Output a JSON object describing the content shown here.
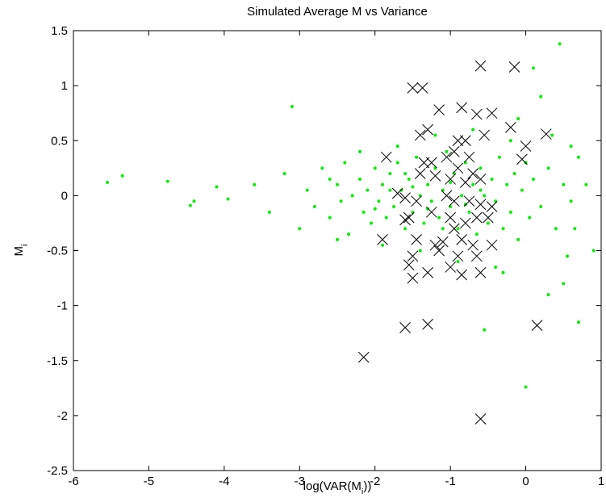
{
  "chart_data": {
    "type": "scatter",
    "title": "Simulated Average M vs Variance",
    "xlabel": [
      "log(VAR(M",
      "i",
      "))"
    ],
    "ylabel": [
      "M",
      "i"
    ],
    "xlim": [
      -6,
      1
    ],
    "ylim": [
      -2.5,
      1.5
    ],
    "xticks": [
      -6,
      -5,
      -4,
      -3,
      -2,
      -1,
      0,
      1
    ],
    "yticks": [
      -2.5,
      -2,
      -1.5,
      -1,
      -0.5,
      0,
      0.5,
      1,
      1.5
    ],
    "series": [
      {
        "color": "#00ee00",
        "marker": "dot",
        "x": [
          -5.55,
          -5.35,
          -4.75,
          -4.4,
          -4.45,
          -4.1,
          -3.95,
          -3.1,
          -3.6,
          -3.4,
          -3.2,
          -3.0,
          -2.9,
          -2.8,
          -2.7,
          -2.6,
          -2.5,
          -2.45,
          -2.4,
          -2.35,
          -2.3,
          -2.2,
          -2.15,
          -2.1,
          -2.05,
          -2.0,
          -1.95,
          -1.9,
          -1.85,
          -1.8,
          -1.75,
          -1.7,
          -1.65,
          -1.6,
          -1.55,
          -1.5,
          -1.45,
          -1.4,
          -1.35,
          -1.3,
          -1.25,
          -1.2,
          -1.15,
          -1.1,
          -1.05,
          -1.0,
          -0.95,
          -0.9,
          -0.85,
          -0.8,
          -0.75,
          -0.7,
          -0.65,
          -0.6,
          -0.55,
          -0.5,
          -0.45,
          -0.4,
          -0.35,
          -0.3,
          -0.25,
          -0.2,
          -0.15,
          -0.1,
          -0.05,
          0.0,
          0.05,
          0.1,
          0.2,
          0.3,
          0.4,
          0.5,
          0.6,
          0.65,
          0.9,
          0.7,
          0.45,
          0.1,
          0.0,
          -0.55,
          0.7,
          0.5,
          0.3,
          -0.3,
          -0.1,
          0.2,
          -2.5,
          -2.2,
          -1.9,
          -1.7,
          -1.4,
          -1.2,
          -0.9,
          -0.7,
          -0.4,
          -0.2,
          0.35,
          0.6,
          0.8,
          0.55,
          -1.6,
          -1.3,
          -1.0,
          -0.8,
          -1.5,
          -2.0,
          -1.8,
          -1.1,
          -0.6,
          -2.6
        ],
        "values": [
          0.12,
          0.18,
          0.13,
          -0.05,
          -0.09,
          0.08,
          -0.03,
          0.81,
          0.1,
          -0.15,
          0.2,
          -0.3,
          0.05,
          -0.1,
          0.25,
          -0.2,
          0.1,
          -0.05,
          0.3,
          -0.35,
          0.0,
          0.15,
          -0.15,
          0.05,
          -0.25,
          0.25,
          -0.05,
          0.1,
          -0.2,
          0.2,
          -0.1,
          0.3,
          0.05,
          -0.3,
          0.15,
          -0.15,
          0.35,
          0.0,
          -0.25,
          0.1,
          -0.05,
          0.25,
          -0.2,
          0.05,
          0.4,
          -0.1,
          0.2,
          -0.3,
          0.0,
          0.3,
          -0.15,
          0.1,
          -0.35,
          0.25,
          0.0,
          -0.25,
          0.15,
          -0.05,
          0.35,
          -0.3,
          0.1,
          -0.15,
          0.2,
          -0.4,
          0.05,
          0.3,
          -0.2,
          0.15,
          -0.1,
          0.25,
          -0.3,
          0.1,
          -0.05,
          -0.3,
          -0.5,
          0.35,
          1.38,
          1.16,
          -1.74,
          -1.22,
          -1.15,
          -0.8,
          -0.9,
          -0.7,
          0.7,
          0.9,
          -0.4,
          0.4,
          -0.45,
          0.45,
          -0.5,
          0.55,
          -0.6,
          0.6,
          -0.65,
          0.5,
          0.55,
          0.45,
          0.1,
          -0.55,
          0.2,
          -0.12,
          0.12,
          -0.08,
          0.08,
          -0.12,
          0.05,
          -0.3,
          0.05,
          0.15
        ]
      },
      {
        "color": "#000000",
        "marker": "x",
        "x": [
          -0.6,
          -0.15,
          -1.5,
          -1.37,
          -1.15,
          -0.85,
          -0.65,
          -0.45,
          -0.2,
          0.27,
          -1.4,
          -1.3,
          -0.9,
          -0.8,
          -0.55,
          0.0,
          -0.05,
          -1.85,
          -1.35,
          -1.25,
          -1.05,
          -0.95,
          -0.75,
          -1.4,
          -1.2,
          -0.9,
          -0.7,
          -1.0,
          -0.8,
          -0.6,
          -1.7,
          -1.6,
          -1.45,
          -1.05,
          -0.95,
          -0.75,
          -0.6,
          -0.45,
          -1.55,
          -1.6,
          -1.25,
          -1.0,
          -0.8,
          -0.65,
          -0.5,
          -1.9,
          -1.45,
          -1.2,
          -1.1,
          -0.95,
          -0.85,
          -0.7,
          -0.45,
          -1.5,
          -1.15,
          -0.9,
          -0.65,
          -1.55,
          -1.5,
          -1.3,
          -1.0,
          -0.85,
          -0.6,
          -1.6,
          -1.3,
          0.15,
          -2.15,
          -0.6
        ],
        "values": [
          1.18,
          1.17,
          0.98,
          0.98,
          0.78,
          0.8,
          0.74,
          0.75,
          0.62,
          0.56,
          0.55,
          0.6,
          0.5,
          0.5,
          0.55,
          0.45,
          0.33,
          0.35,
          0.3,
          0.3,
          0.35,
          0.4,
          0.35,
          0.2,
          0.18,
          0.25,
          0.2,
          0.15,
          0.12,
          0.15,
          0.02,
          -0.02,
          -0.05,
          0.0,
          -0.05,
          -0.05,
          -0.08,
          -0.1,
          -0.2,
          -0.22,
          -0.15,
          -0.2,
          -0.25,
          -0.2,
          -0.2,
          -0.4,
          -0.4,
          -0.45,
          -0.42,
          -0.3,
          -0.4,
          -0.45,
          -0.45,
          -0.55,
          -0.5,
          -0.55,
          -0.55,
          -0.63,
          -0.75,
          -0.7,
          -0.65,
          -0.72,
          -0.7,
          -1.2,
          -1.17,
          -1.18,
          -1.47,
          -2.03
        ]
      }
    ]
  }
}
